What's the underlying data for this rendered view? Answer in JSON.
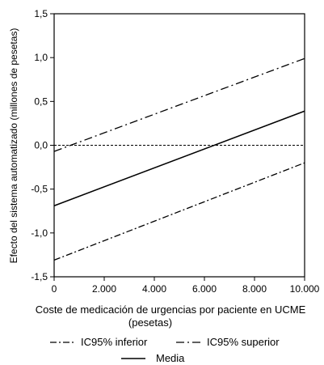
{
  "chart_data": {
    "type": "line",
    "xlabel": "Coste de medicación de urgencias por paciente en UCME",
    "xlabel_sub": "(pesetas)",
    "ylabel": "Efecto del sistema automatizado (millones de pesetas)",
    "xlim": [
      0,
      10000
    ],
    "ylim": [
      -1.5,
      1.5
    ],
    "x_ticks": [
      0,
      2000,
      4000,
      6000,
      8000,
      10000
    ],
    "x_tick_labels": [
      "0",
      "2.000",
      "4.000",
      "6.000",
      "8.000",
      "10.000"
    ],
    "y_ticks": [
      1.5,
      1.0,
      0.5,
      0.0,
      -0.5,
      -1.0,
      -1.5
    ],
    "y_tick_labels": [
      "1,5",
      "1,0",
      "0,5",
      "0,0",
      "-0,5",
      "-1,0",
      "-1,5"
    ],
    "reference_line": {
      "y": 0.0,
      "style": "dashed"
    },
    "grid": false,
    "legend_position": "bottom",
    "series": [
      {
        "name": "IC95% inferior",
        "style": "dash-dot",
        "x": [
          0,
          10000
        ],
        "y": [
          -1.31,
          -0.2
        ]
      },
      {
        "name": "IC95% superior",
        "style": "dash-dot-long",
        "x": [
          0,
          10000
        ],
        "y": [
          -0.07,
          0.99
        ]
      },
      {
        "name": "Media",
        "style": "solid",
        "x": [
          0,
          10000
        ],
        "y": [
          -0.69,
          0.39
        ]
      }
    ]
  }
}
